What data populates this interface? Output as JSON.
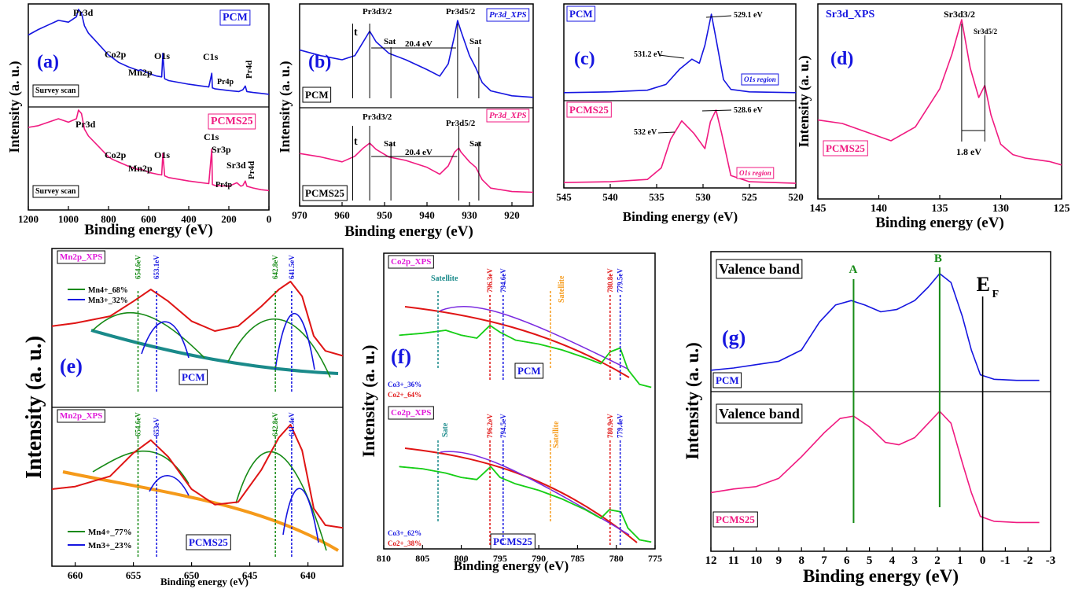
{
  "chart_data": [
    {
      "id": "a",
      "type": "line",
      "panel_letter": "(a)",
      "xlabel": "Binding energy (eV)",
      "ylabel": "Intensity (a. u.)",
      "xlim": [
        1200,
        0
      ],
      "xticks": [
        "1200",
        "1000",
        "800",
        "600",
        "400",
        "200",
        "0"
      ],
      "series": [
        {
          "name": "PCM",
          "label": "Survey scan",
          "color": "#1515e0",
          "x": [
            1200,
            1150,
            1100,
            1050,
            1000,
            960,
            950,
            935,
            920,
            900,
            850,
            800,
            780,
            750,
            700,
            650,
            640,
            600,
            560,
            535,
            529,
            520,
            500,
            400,
            300,
            285,
            282,
            270,
            200,
            150,
            130,
            118,
            110,
            80,
            40,
            0
          ],
          "y": [
            0.72,
            0.78,
            0.83,
            0.88,
            0.86,
            0.92,
            1.0,
            0.96,
            0.82,
            0.74,
            0.62,
            0.5,
            0.47,
            0.42,
            0.37,
            0.33,
            0.34,
            0.3,
            0.27,
            0.26,
            0.52,
            0.24,
            0.22,
            0.18,
            0.15,
            0.3,
            0.14,
            0.13,
            0.11,
            0.1,
            0.12,
            0.16,
            0.1,
            0.09,
            0.08,
            0.07
          ]
        },
        {
          "name": "PCMS25",
          "label": "Survey scan",
          "color": "#f01a80",
          "x": [
            1200,
            1150,
            1100,
            1050,
            1000,
            960,
            950,
            935,
            920,
            900,
            850,
            800,
            780,
            750,
            700,
            650,
            640,
            600,
            560,
            535,
            529,
            520,
            500,
            400,
            300,
            285,
            282,
            270,
            200,
            160,
            140,
            130,
            118,
            110,
            80,
            40,
            0
          ],
          "y": [
            0.8,
            0.82,
            0.86,
            0.9,
            0.86,
            0.9,
            1.0,
            0.96,
            0.78,
            0.7,
            0.58,
            0.46,
            0.43,
            0.4,
            0.35,
            0.31,
            0.32,
            0.28,
            0.26,
            0.25,
            0.5,
            0.24,
            0.22,
            0.18,
            0.15,
            0.55,
            0.14,
            0.13,
            0.12,
            0.16,
            0.12,
            0.13,
            0.18,
            0.12,
            0.1,
            0.08,
            0.07
          ]
        }
      ],
      "annotations": [
        "Pr3d",
        "Co2p",
        "Mn2p",
        "O1s",
        "C1s",
        "Pr4p",
        "Pr4d",
        "Pr3d",
        "Co2p",
        "Mn2p",
        "O1s",
        "C1s",
        "Sr3p",
        "Sr3d",
        "Pr4p",
        "Pr4d"
      ],
      "legend": [
        "PCM",
        "PCMS25"
      ]
    },
    {
      "id": "b",
      "type": "line",
      "panel_letter": "(b)",
      "xlabel": "Binding energy (eV)",
      "ylabel": "Intensity (a. u.)",
      "xlim": [
        970,
        915
      ],
      "xticks": [
        "970",
        "960",
        "950",
        "940",
        "930",
        "920"
      ],
      "series": [
        {
          "name": "PCM",
          "title": "Pr3d_XPS",
          "color": "#1515e0",
          "x": [
            970,
            965,
            960,
            957,
            955,
            953.5,
            952,
            949,
            945,
            940,
            937,
            935,
            933.5,
            932.8,
            932,
            930,
            928.5,
            927,
            925,
            920,
            915
          ],
          "y": [
            0.62,
            0.55,
            0.5,
            0.55,
            0.72,
            0.85,
            0.72,
            0.58,
            0.5,
            0.38,
            0.3,
            0.45,
            0.8,
            0.98,
            0.85,
            0.55,
            0.4,
            0.22,
            0.12,
            0.06,
            0.04
          ]
        },
        {
          "name": "PCMS25",
          "title": "Pr3d_XPS",
          "color": "#f01a80",
          "x": [
            970,
            965,
            960,
            957,
            955,
            953.5,
            952,
            949,
            945,
            940,
            937,
            935,
            933.5,
            932.5,
            932,
            930,
            928.5,
            927,
            925,
            920,
            915
          ],
          "y": [
            0.6,
            0.55,
            0.48,
            0.56,
            0.68,
            0.75,
            0.66,
            0.55,
            0.5,
            0.4,
            0.3,
            0.42,
            0.62,
            0.68,
            0.62,
            0.48,
            0.4,
            0.22,
            0.1,
            0.05,
            0.04
          ]
        }
      ],
      "annotations": [
        "t",
        "Pr3d3/2",
        "Sat",
        "20.4 eV",
        "Pr3d5/2",
        "Sat",
        "t",
        "Pr3d3/2",
        "Sat",
        "20.4 eV",
        "Pr3d5/2",
        "Sat"
      ],
      "legend": [
        "PCM",
        "PCMS25"
      ]
    },
    {
      "id": "c",
      "type": "line",
      "panel_letter": "(c)",
      "xlabel": "Binding energy (eV)",
      "xlim": [
        545,
        520
      ],
      "xticks": [
        "545",
        "540",
        "535",
        "530",
        "525",
        "520"
      ],
      "series": [
        {
          "name": "PCM",
          "title": "O1s region",
          "color": "#1515e0",
          "x": [
            545,
            540,
            536,
            534,
            532.5,
            531.2,
            530.4,
            529.8,
            529.1,
            528.6,
            527.8,
            527,
            525,
            520
          ],
          "y": [
            0.04,
            0.05,
            0.07,
            0.14,
            0.33,
            0.45,
            0.4,
            0.62,
            1.0,
            0.7,
            0.2,
            0.08,
            0.05,
            0.04
          ]
        },
        {
          "name": "PCMS25",
          "title": "O1s region",
          "color": "#f01a80",
          "x": [
            545,
            540,
            536,
            534.5,
            533.5,
            532.3,
            531,
            529.8,
            529.2,
            528.6,
            528,
            527,
            525,
            520
          ],
          "y": [
            0.06,
            0.07,
            0.1,
            0.25,
            0.62,
            0.86,
            0.7,
            0.5,
            0.85,
            1.0,
            0.7,
            0.15,
            0.07,
            0.05
          ]
        }
      ],
      "annotations": [
        "529.1 eV",
        "531.2 eV",
        "528.6 eV",
        "532 eV"
      ],
      "legend": [
        "PCM",
        "PCMS25"
      ]
    },
    {
      "id": "d",
      "type": "line",
      "panel_letter": "(d)",
      "title": "Sr3d_XPS",
      "xlabel": "Binding energy (eV)",
      "ylabel": "Intensity (a. u.)",
      "xlim": [
        145,
        125
      ],
      "xticks": [
        "145",
        "140",
        "135",
        "130",
        "125"
      ],
      "series": [
        {
          "name": "PCMS25",
          "color": "#f01a80",
          "x": [
            145,
            143,
            141,
            139,
            137,
            135,
            134,
            133.2,
            132.5,
            131.8,
            131.3,
            130.8,
            130,
            129,
            128,
            127,
            126,
            125
          ],
          "y": [
            0.42,
            0.4,
            0.35,
            0.3,
            0.38,
            0.6,
            0.8,
            1.0,
            0.72,
            0.55,
            0.62,
            0.45,
            0.28,
            0.22,
            0.2,
            0.19,
            0.18,
            0.16
          ]
        }
      ],
      "annotations": [
        "Sr3d3/2",
        "Sr3d5/2",
        "1.8 eV"
      ],
      "legend": [
        "PCMS25"
      ]
    },
    {
      "id": "e",
      "type": "line",
      "panel_letter": "(e)",
      "xlabel": "Binding energy (eV)",
      "ylabel": "Intensity (a. u.)",
      "xlim": [
        662,
        637
      ],
      "xticks": [
        "660",
        "655",
        "650",
        "645",
        "640"
      ],
      "series": [
        {
          "name": "PCM",
          "title": "Mn2p_XPS",
          "color": "#000000",
          "x": [
            662,
            660,
            657,
            655,
            653.5,
            652,
            650,
            648,
            646,
            644,
            642.5,
            641.5,
            640.5,
            639.5,
            638.5,
            637
          ],
          "y": [
            0.55,
            0.58,
            0.65,
            0.8,
            0.92,
            0.8,
            0.6,
            0.5,
            0.55,
            0.75,
            0.92,
            1.0,
            0.85,
            0.45,
            0.3,
            0.25
          ]
        },
        {
          "name": "PCMS25",
          "title": "Mn2p_XPS",
          "color": "#000000",
          "x": [
            662,
            660,
            657,
            655,
            653.5,
            652,
            650,
            648,
            646,
            644,
            642.5,
            641.5,
            640.5,
            639.5,
            638.5,
            637
          ],
          "y": [
            0.5,
            0.52,
            0.6,
            0.78,
            0.88,
            0.75,
            0.5,
            0.38,
            0.4,
            0.65,
            0.9,
            1.0,
            0.8,
            0.35,
            0.22,
            0.2
          ]
        }
      ],
      "peaks_pcm": [
        "654.6eV",
        "653.1eV",
        "642.8eV",
        "641.5eV"
      ],
      "peaks_pcms25": [
        "654.6eV",
        "653eV",
        "642.8eV",
        "641.4eV"
      ],
      "fractions_pcm": {
        "mn4": "Mn4+_68%",
        "mn3": "Mn3+_32%"
      },
      "fractions_pcms25": {
        "mn4": "Mn4+_77%",
        "mn3": "Mn3+_23%"
      },
      "legend": [
        "PCM",
        "PCMS25"
      ]
    },
    {
      "id": "f",
      "type": "line",
      "panel_letter": "(f)",
      "xlabel": "Binding energy (eV)",
      "ylabel": "Intensity (a. u.)",
      "xlim": [
        810,
        775
      ],
      "xticks": [
        "810",
        "805",
        "800",
        "795",
        "790",
        "785",
        "780",
        "775"
      ],
      "series": [
        {
          "name": "PCM",
          "title": "Co2p_XPS",
          "color": "#000000",
          "x": [
            808,
            805,
            802,
            800,
            798,
            796.3,
            795,
            793,
            790,
            787,
            784,
            782,
            780.8,
            779.5,
            778.5,
            777,
            775.5
          ],
          "y": [
            0.55,
            0.57,
            0.6,
            0.55,
            0.52,
            0.65,
            0.58,
            0.5,
            0.46,
            0.4,
            0.32,
            0.26,
            0.38,
            0.42,
            0.2,
            0.05,
            0.02
          ]
        },
        {
          "name": "PCMS25",
          "title": "Co2p_XPS",
          "color": "#000000",
          "x": [
            808,
            805,
            802,
            800,
            798,
            796.2,
            795,
            793,
            790,
            787,
            784,
            782,
            780.9,
            779.4,
            778.5,
            777,
            775.5
          ],
          "y": [
            0.72,
            0.7,
            0.66,
            0.62,
            0.6,
            0.72,
            0.62,
            0.56,
            0.5,
            0.42,
            0.32,
            0.24,
            0.32,
            0.3,
            0.15,
            0.04,
            0.02
          ]
        }
      ],
      "peaks_pcm": [
        "796.3eV",
        "794.6eV",
        "780.8eV",
        "779.5eV"
      ],
      "peaks_pcms25": [
        "796.2eV",
        "794.5eV",
        "780.9eV",
        "779.4eV"
      ],
      "fractions_pcm": {
        "co3": "Co3+_36%",
        "co2": "Co2+_64%"
      },
      "fractions_pcms25": {
        "co3": "Co3+_62%",
        "co2": "Co2+_38%"
      },
      "legend": [
        "PCM",
        "PCMS25"
      ]
    },
    {
      "id": "g",
      "type": "line",
      "panel_letter": "(g)",
      "xlabel": "Binding energy (eV)",
      "ylabel": "Intensity (a. u.)",
      "xlim": [
        12,
        -3
      ],
      "xticks": [
        "12",
        "11",
        "10",
        "9",
        "8",
        "7",
        "6",
        "5",
        "4",
        "3",
        "2",
        "1",
        "0",
        "-1",
        "-2",
        "-3"
      ],
      "series": [
        {
          "name": "PCM",
          "title": "Valence band",
          "color": "#1515e0",
          "x": [
            12,
            11,
            10,
            9,
            8,
            7.2,
            6.5,
            5.8,
            5.2,
            4.5,
            3.8,
            3,
            2.4,
            1.9,
            1.4,
            0.9,
            0.5,
            0.1,
            -0.5,
            -1.5,
            -2.5
          ],
          "y": [
            0.12,
            0.14,
            0.17,
            0.2,
            0.3,
            0.55,
            0.7,
            0.74,
            0.7,
            0.64,
            0.66,
            0.74,
            0.86,
            0.98,
            0.9,
            0.6,
            0.3,
            0.08,
            0.04,
            0.03,
            0.03
          ]
        },
        {
          "name": "PCMS25",
          "title": "Valence band",
          "color": "#f01a80",
          "x": [
            12,
            11,
            10,
            9,
            8,
            7,
            6.3,
            5.7,
            5,
            4.3,
            3.7,
            3,
            2.4,
            1.9,
            1.4,
            0.9,
            0.5,
            0.1,
            -0.5,
            -1.5,
            -2.5
          ],
          "y": [
            0.3,
            0.33,
            0.35,
            0.42,
            0.6,
            0.8,
            0.92,
            0.94,
            0.85,
            0.72,
            0.7,
            0.76,
            0.88,
            0.98,
            0.88,
            0.55,
            0.3,
            0.1,
            0.06,
            0.05,
            0.05
          ]
        }
      ],
      "annotations": [
        "A",
        "B",
        "E",
        "F"
      ],
      "legend": [
        "PCM",
        "PCMS25"
      ]
    }
  ]
}
